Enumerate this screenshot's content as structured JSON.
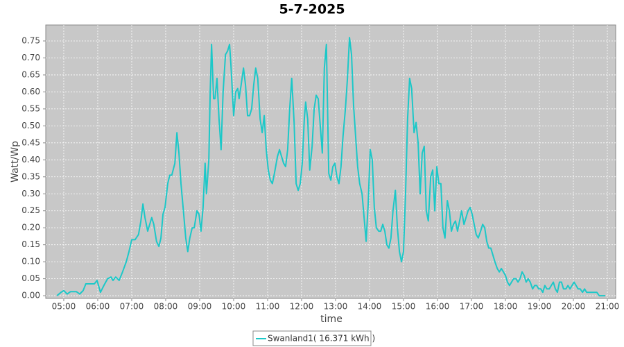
{
  "chart_data": {
    "type": "line",
    "title": "5-7-2025",
    "x_label": "time",
    "y_label": "Watt/Wp",
    "x": [
      4.8,
      4.92,
      5.0,
      5.1,
      5.2,
      5.37,
      5.47,
      5.57,
      5.65,
      5.78,
      5.9,
      5.98,
      6.08,
      6.18,
      6.29,
      6.39,
      6.45,
      6.53,
      6.63,
      6.73,
      6.84,
      6.92,
      7.0,
      7.1,
      7.2,
      7.27,
      7.33,
      7.39,
      7.47,
      7.53,
      7.59,
      7.65,
      7.73,
      7.8,
      7.86,
      7.92,
      7.98,
      8.06,
      8.12,
      8.18,
      8.27,
      8.33,
      8.39,
      8.45,
      8.53,
      8.59,
      8.65,
      8.71,
      8.78,
      8.84,
      8.92,
      8.98,
      9.04,
      9.1,
      9.16,
      9.2,
      9.27,
      9.31,
      9.35,
      9.41,
      9.45,
      9.51,
      9.57,
      9.63,
      9.69,
      9.76,
      9.82,
      9.88,
      9.92,
      10.0,
      10.06,
      10.12,
      10.16,
      10.22,
      10.29,
      10.35,
      10.41,
      10.47,
      10.53,
      10.59,
      10.65,
      10.71,
      10.78,
      10.84,
      10.9,
      10.96,
      11.02,
      11.08,
      11.14,
      11.2,
      11.29,
      11.35,
      11.41,
      11.47,
      11.53,
      11.59,
      11.65,
      11.71,
      11.78,
      11.84,
      11.9,
      11.96,
      12.02,
      12.08,
      12.12,
      12.18,
      12.24,
      12.31,
      12.37,
      12.43,
      12.49,
      12.55,
      12.61,
      12.67,
      12.73,
      12.8,
      12.86,
      12.92,
      12.98,
      13.04,
      13.1,
      13.16,
      13.22,
      13.29,
      13.35,
      13.41,
      13.47,
      13.53,
      13.59,
      13.65,
      13.71,
      13.78,
      13.84,
      13.9,
      13.96,
      14.02,
      14.08,
      14.14,
      14.2,
      14.27,
      14.33,
      14.39,
      14.45,
      14.51,
      14.57,
      14.63,
      14.69,
      14.76,
      14.82,
      14.88,
      14.94,
      15.0,
      15.06,
      15.12,
      15.18,
      15.24,
      15.31,
      15.37,
      15.43,
      15.49,
      15.55,
      15.61,
      15.67,
      15.73,
      15.8,
      15.86,
      15.92,
      15.98,
      16.04,
      16.1,
      16.16,
      16.22,
      16.29,
      16.35,
      16.41,
      16.47,
      16.53,
      16.59,
      16.65,
      16.71,
      16.78,
      16.84,
      16.9,
      16.96,
      17.02,
      17.08,
      17.14,
      17.2,
      17.27,
      17.33,
      17.39,
      17.45,
      17.51,
      17.57,
      17.63,
      17.69,
      17.76,
      17.82,
      17.88,
      17.94,
      18.0,
      18.06,
      18.12,
      18.18,
      18.24,
      18.31,
      18.37,
      18.43,
      18.49,
      18.55,
      18.61,
      18.67,
      18.73,
      18.8,
      18.86,
      18.92,
      18.98,
      19.04,
      19.1,
      19.16,
      19.22,
      19.29,
      19.35,
      19.41,
      19.47,
      19.53,
      19.59,
      19.65,
      19.71,
      19.78,
      19.84,
      19.9,
      19.96,
      20.02,
      20.08,
      20.14,
      20.2,
      20.27,
      20.33,
      20.39,
      20.45,
      20.51,
      20.57,
      20.63,
      20.69,
      20.76,
      20.82,
      20.88,
      20.94
    ],
    "series": [
      {
        "name": "Swanland1( 16.371 kWh )",
        "color": "#1cc8c8",
        "values": [
          0,
          0.01,
          0.015,
          0.005,
          0.012,
          0.012,
          0.005,
          0.015,
          0.035,
          0.035,
          0.035,
          0.045,
          0.01,
          0.03,
          0.05,
          0.055,
          0.045,
          0.055,
          0.045,
          0.07,
          0.1,
          0.13,
          0.165,
          0.165,
          0.18,
          0.22,
          0.27,
          0.23,
          0.19,
          0.21,
          0.23,
          0.21,
          0.16,
          0.145,
          0.17,
          0.24,
          0.26,
          0.33,
          0.355,
          0.355,
          0.39,
          0.48,
          0.42,
          0.33,
          0.24,
          0.17,
          0.13,
          0.17,
          0.2,
          0.2,
          0.25,
          0.24,
          0.19,
          0.26,
          0.39,
          0.3,
          0.4,
          0.6,
          0.74,
          0.58,
          0.58,
          0.64,
          0.52,
          0.43,
          0.6,
          0.71,
          0.72,
          0.74,
          0.68,
          0.53,
          0.6,
          0.61,
          0.58,
          0.62,
          0.67,
          0.62,
          0.53,
          0.53,
          0.55,
          0.62,
          0.67,
          0.64,
          0.52,
          0.48,
          0.53,
          0.43,
          0.37,
          0.34,
          0.33,
          0.36,
          0.41,
          0.43,
          0.41,
          0.39,
          0.38,
          0.43,
          0.55,
          0.64,
          0.51,
          0.33,
          0.31,
          0.33,
          0.39,
          0.52,
          0.57,
          0.52,
          0.37,
          0.44,
          0.55,
          0.59,
          0.58,
          0.5,
          0.42,
          0.67,
          0.74,
          0.36,
          0.34,
          0.38,
          0.39,
          0.35,
          0.33,
          0.38,
          0.47,
          0.55,
          0.64,
          0.76,
          0.71,
          0.56,
          0.47,
          0.38,
          0.33,
          0.3,
          0.23,
          0.16,
          0.27,
          0.43,
          0.4,
          0.26,
          0.2,
          0.19,
          0.19,
          0.21,
          0.19,
          0.15,
          0.14,
          0.17,
          0.25,
          0.31,
          0.2,
          0.13,
          0.1,
          0.13,
          0.3,
          0.52,
          0.64,
          0.61,
          0.48,
          0.51,
          0.45,
          0.3,
          0.42,
          0.44,
          0.25,
          0.22,
          0.35,
          0.37,
          0.25,
          0.38,
          0.33,
          0.33,
          0.2,
          0.17,
          0.28,
          0.25,
          0.19,
          0.21,
          0.22,
          0.19,
          0.22,
          0.25,
          0.21,
          0.23,
          0.25,
          0.26,
          0.24,
          0.21,
          0.18,
          0.17,
          0.19,
          0.21,
          0.2,
          0.16,
          0.14,
          0.14,
          0.12,
          0.1,
          0.08,
          0.07,
          0.08,
          0.07,
          0.06,
          0.04,
          0.03,
          0.04,
          0.05,
          0.05,
          0.04,
          0.05,
          0.07,
          0.06,
          0.04,
          0.05,
          0.04,
          0.02,
          0.03,
          0.03,
          0.02,
          0.02,
          0.01,
          0.03,
          0.02,
          0.02,
          0.03,
          0.04,
          0.02,
          0.01,
          0.04,
          0.04,
          0.02,
          0.02,
          0.03,
          0.02,
          0.03,
          0.04,
          0.03,
          0.02,
          0.02,
          0.01,
          0.02,
          0.01,
          0.01,
          0.01,
          0.01,
          0.01,
          0.01,
          0,
          0,
          0,
          0
        ]
      }
    ],
    "xlim": [
      4.47,
      21.245
    ],
    "xticks": [
      {
        "value": 5,
        "label": "05:00"
      },
      {
        "value": 6,
        "label": "06:00"
      },
      {
        "value": 7,
        "label": "07:00"
      },
      {
        "value": 8,
        "label": "08:00"
      },
      {
        "value": 9,
        "label": "09:00"
      },
      {
        "value": 10,
        "label": "10:00"
      },
      {
        "value": 11,
        "label": "11:00"
      },
      {
        "value": 12,
        "label": "12:00"
      },
      {
        "value": 13,
        "label": "13:00"
      },
      {
        "value": 14,
        "label": "14:00"
      },
      {
        "value": 15,
        "label": "15:00"
      },
      {
        "value": 16,
        "label": "16:00"
      },
      {
        "value": 17,
        "label": "17:00"
      },
      {
        "value": 18,
        "label": "18:00"
      },
      {
        "value": 19,
        "label": "19:00"
      },
      {
        "value": 20,
        "label": "20:00"
      },
      {
        "value": 21,
        "label": "21:00"
      }
    ],
    "ylim": [
      -0.008,
      0.797
    ],
    "yticks": [
      {
        "value": 0,
        "label": "0.00"
      },
      {
        "value": 0.05,
        "label": "0.05"
      },
      {
        "value": 0.1,
        "label": "0.10"
      },
      {
        "value": 0.15,
        "label": "0.15"
      },
      {
        "value": 0.2,
        "label": "0.20"
      },
      {
        "value": 0.25,
        "label": "0.25"
      },
      {
        "value": 0.3,
        "label": "0.30"
      },
      {
        "value": 0.35,
        "label": "0.35"
      },
      {
        "value": 0.4,
        "label": "0.40"
      },
      {
        "value": 0.45,
        "label": "0.45"
      },
      {
        "value": 0.5,
        "label": "0.50"
      },
      {
        "value": 0.55,
        "label": "0.55"
      },
      {
        "value": 0.6,
        "label": "0.60"
      },
      {
        "value": 0.65,
        "label": "0.65"
      },
      {
        "value": 0.7,
        "label": "0.70"
      },
      {
        "value": 0.75,
        "label": "0.75"
      }
    ],
    "grid": true,
    "legend": "bottom"
  }
}
